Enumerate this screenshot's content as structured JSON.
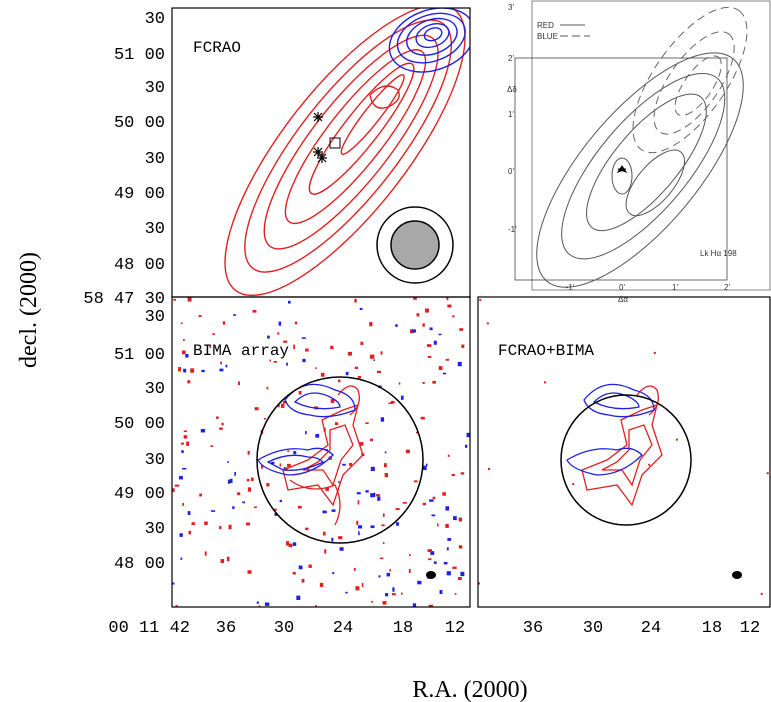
{
  "panels": [
    {
      "label": "FCRAO"
    },
    {
      "label": "BIMA array"
    },
    {
      "label": "FCRAO+BIMA"
    }
  ],
  "y_ticks_top": [
    "30",
    "51 00",
    "30",
    "50 00",
    "30",
    "49 00",
    "30",
    "48 00",
    "58 47 30"
  ],
  "y_ticks_bottom": [
    "30",
    "51 00",
    "30",
    "50 00",
    "30",
    "49 00",
    "30",
    "48 00"
  ],
  "x_ticks_left": [
    "00 11 42",
    "36",
    "30",
    "24",
    "18",
    "12"
  ],
  "x_ticks_right": [
    "36",
    "30",
    "24",
    "18",
    "12"
  ],
  "axis_titles": {
    "y": "decl. (2000)",
    "x": "R.A. (2000)"
  },
  "inset": {
    "legend": [
      "RED",
      "BLUE"
    ],
    "y_label": "Δδ",
    "x_label": "Δα",
    "y_ticks": [
      "3'",
      "2'",
      "1'",
      "0'",
      "-1'"
    ],
    "x_ticks": [
      "-1'",
      "0'",
      "1'",
      "2'"
    ],
    "source": "Lk Hα 198"
  }
}
